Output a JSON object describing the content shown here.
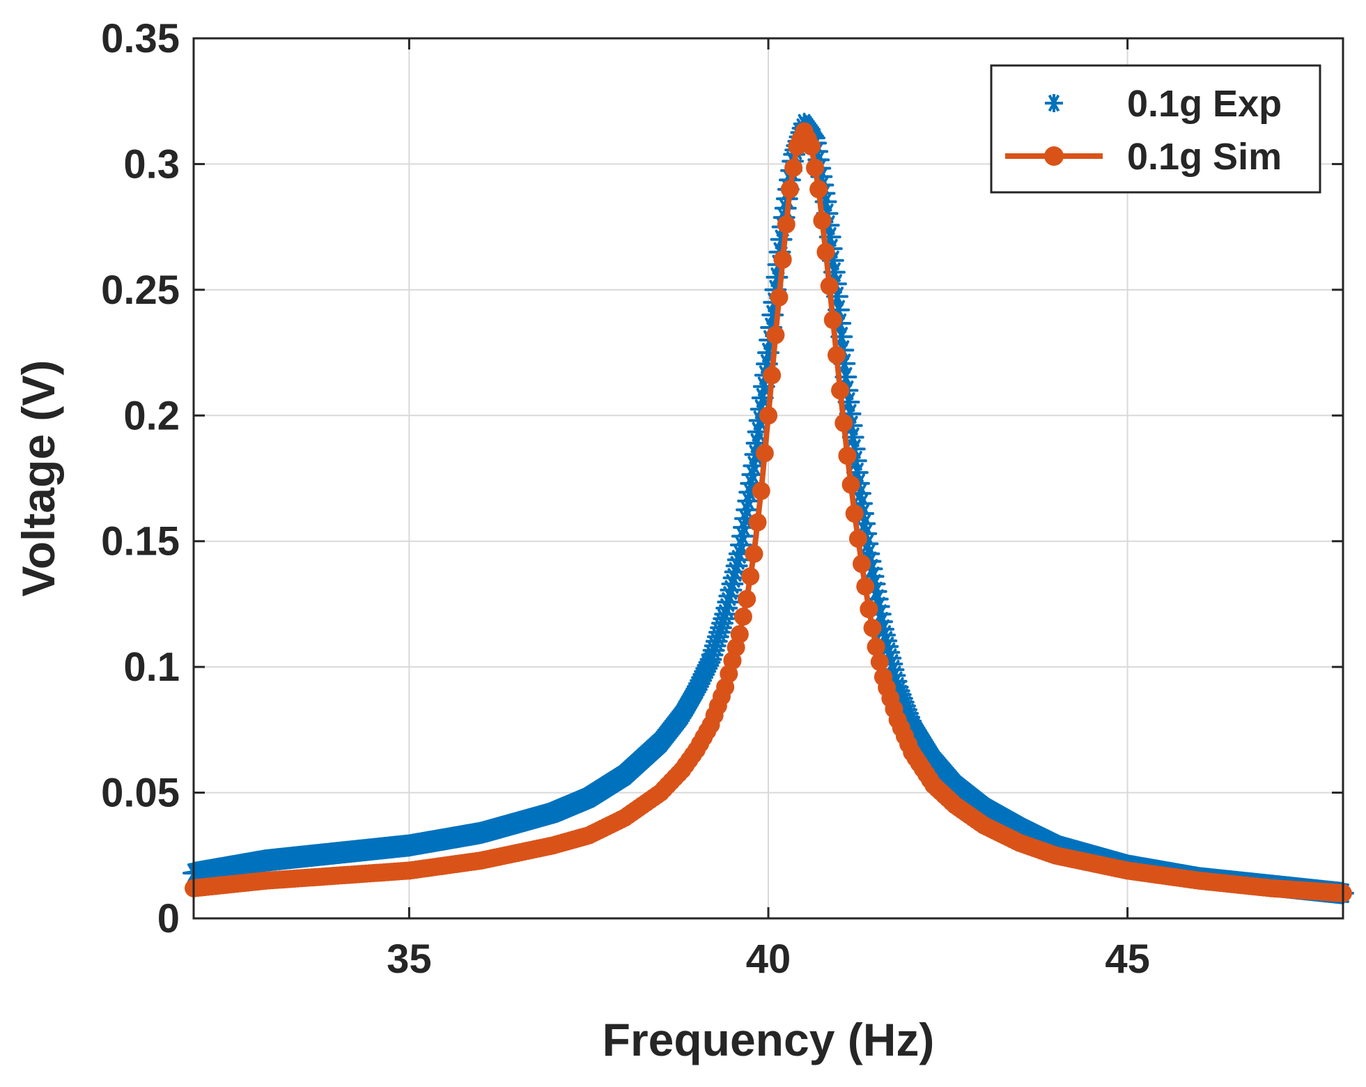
{
  "chart_data": {
    "type": "line",
    "title": "",
    "xlabel": "Frequency (Hz)",
    "ylabel": "Voltage (V)",
    "xlim": [
      32,
      48
    ],
    "ylim": [
      0,
      0.35
    ],
    "xticks": [
      "35",
      "40",
      "45"
    ],
    "xtick_values": [
      35,
      40,
      45
    ],
    "yticks": [
      "0",
      "0.05",
      "0.1",
      "0.15",
      "0.2",
      "0.25",
      "0.3",
      "0.35"
    ],
    "ytick_values": [
      0,
      0.05,
      0.1,
      0.15,
      0.2,
      0.25,
      0.3,
      0.35
    ],
    "grid": true,
    "legend_position": "top-right",
    "series": [
      {
        "name": "0.1g Exp",
        "style": "markers-asterisk",
        "color": "#0072BD",
        "x": [
          32.0,
          33.0,
          34.0,
          35.0,
          36.0,
          37.0,
          37.5,
          38.0,
          38.5,
          38.8,
          39.0,
          39.2,
          39.4,
          39.6,
          39.8,
          40.0,
          40.2,
          40.35,
          40.5,
          40.65,
          40.8,
          40.95,
          41.1,
          41.25,
          41.4,
          41.6,
          41.8,
          42.0,
          42.3,
          42.6,
          43.0,
          43.5,
          44.0,
          45.0,
          46.0,
          47.0,
          48.0
        ],
        "y": [
          0.018,
          0.023,
          0.026,
          0.029,
          0.034,
          0.042,
          0.048,
          0.057,
          0.07,
          0.081,
          0.091,
          0.103,
          0.121,
          0.145,
          0.18,
          0.225,
          0.275,
          0.303,
          0.316,
          0.31,
          0.285,
          0.25,
          0.21,
          0.175,
          0.145,
          0.115,
          0.092,
          0.077,
          0.063,
          0.053,
          0.044,
          0.036,
          0.029,
          0.021,
          0.016,
          0.013,
          0.01
        ]
      },
      {
        "name": "0.1g Sim",
        "style": "line-with-circles",
        "color": "#D95319",
        "x": [
          32.0,
          33.0,
          34.0,
          35.0,
          36.0,
          37.0,
          37.5,
          38.0,
          38.5,
          38.8,
          39.0,
          39.2,
          39.4,
          39.6,
          39.7,
          39.8,
          39.9,
          40.0,
          40.1,
          40.2,
          40.3,
          40.4,
          40.5,
          40.6,
          40.7,
          40.8,
          40.9,
          41.0,
          41.1,
          41.2,
          41.3,
          41.4,
          41.5,
          41.6,
          41.8,
          42.0,
          42.3,
          42.6,
          43.0,
          43.5,
          44.0,
          45.0,
          46.0,
          47.0,
          48.0
        ],
        "y": [
          0.012,
          0.015,
          0.017,
          0.019,
          0.023,
          0.029,
          0.033,
          0.04,
          0.05,
          0.059,
          0.067,
          0.077,
          0.092,
          0.113,
          0.127,
          0.145,
          0.17,
          0.2,
          0.232,
          0.262,
          0.29,
          0.307,
          0.313,
          0.307,
          0.29,
          0.265,
          0.238,
          0.21,
          0.184,
          0.161,
          0.141,
          0.123,
          0.108,
          0.096,
          0.079,
          0.066,
          0.053,
          0.045,
          0.037,
          0.03,
          0.025,
          0.019,
          0.015,
          0.012,
          0.01
        ]
      }
    ]
  }
}
